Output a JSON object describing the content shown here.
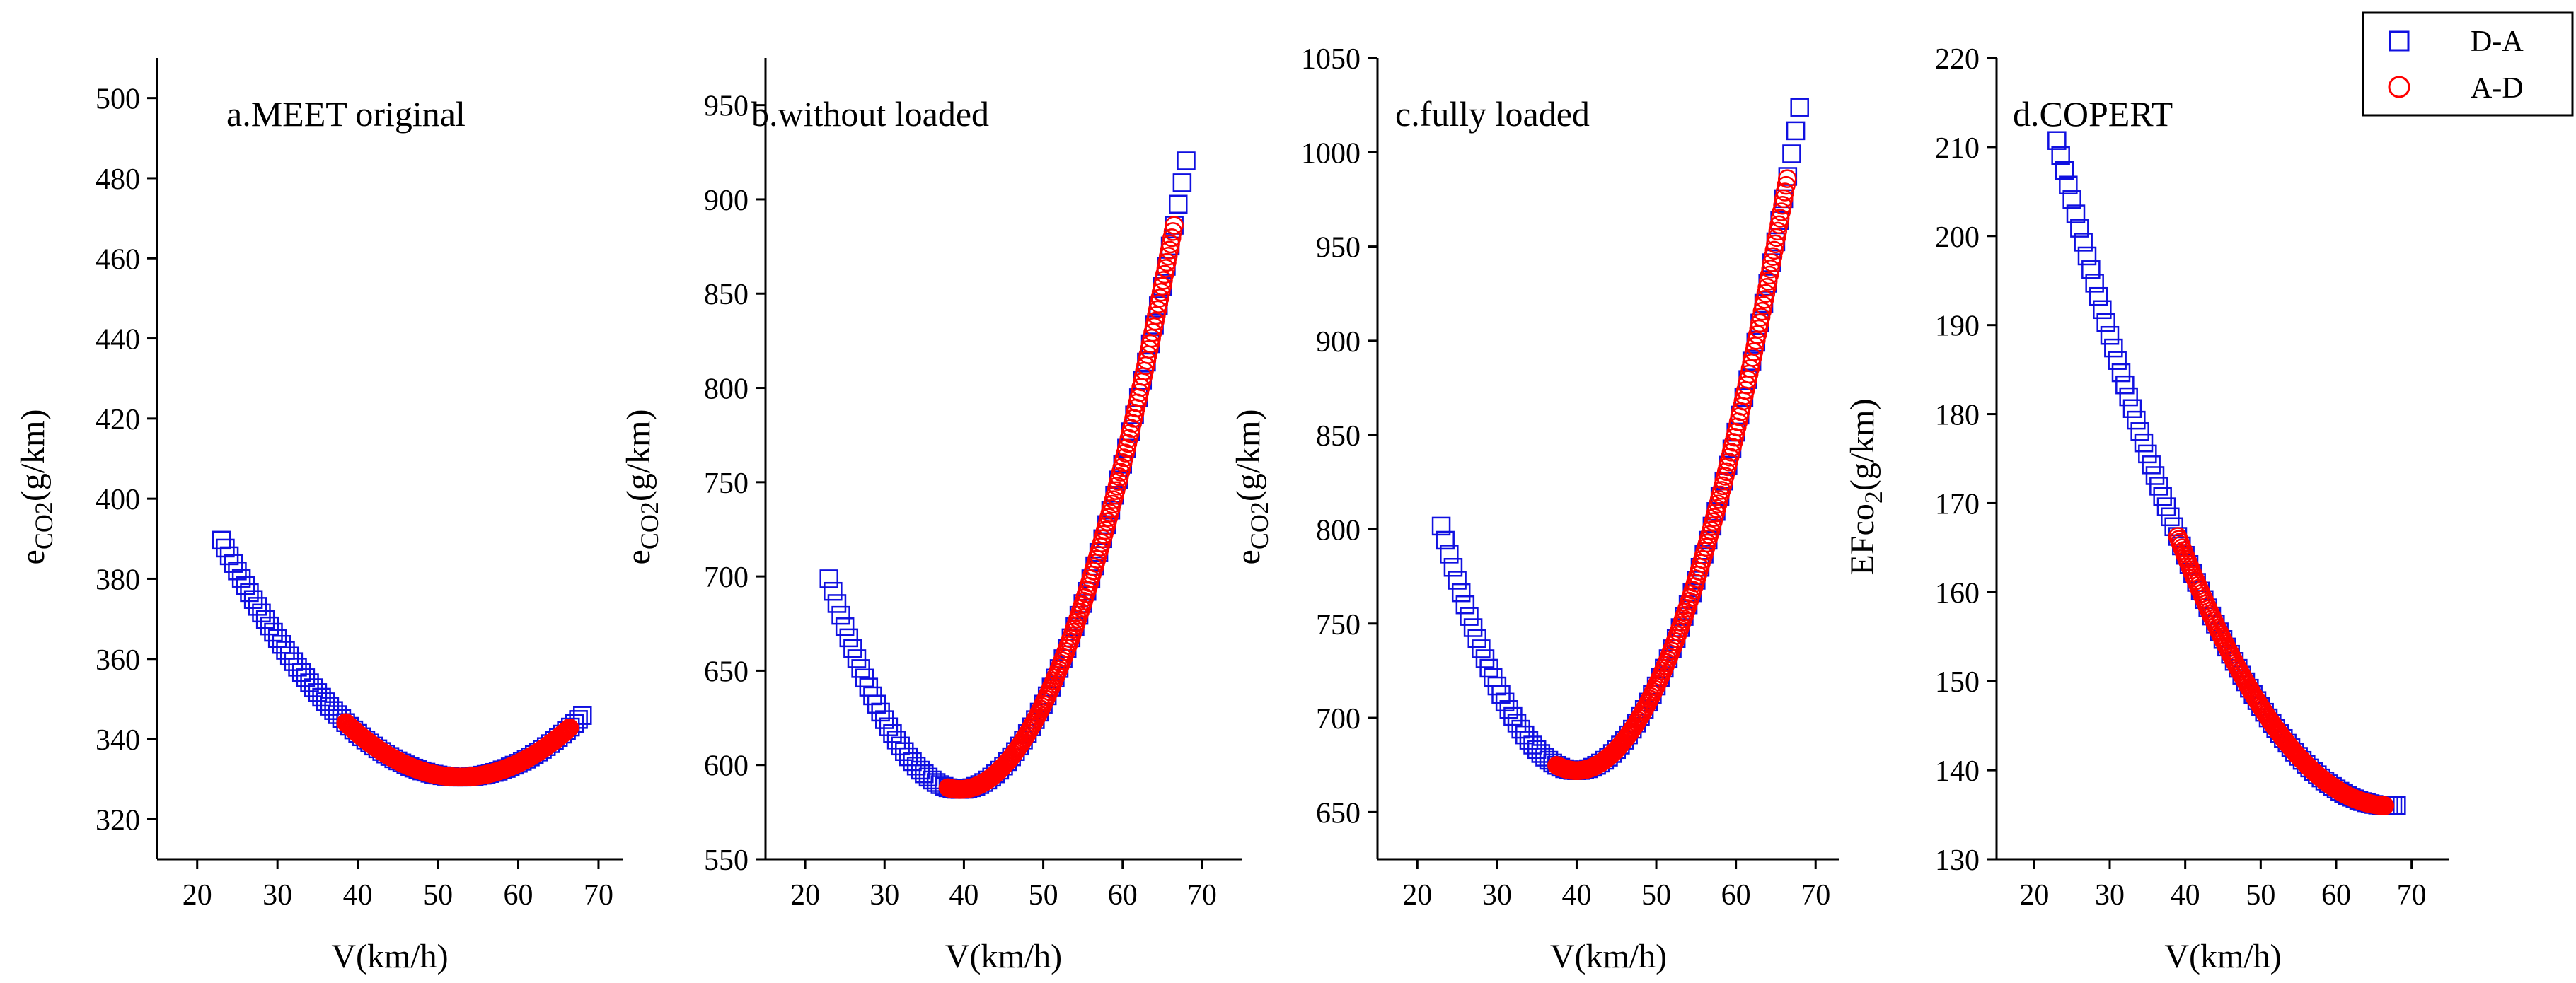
{
  "legend": {
    "entries": [
      {
        "label": "D-A",
        "marker": "square",
        "color": "#1010e0"
      },
      {
        "label": "A-D",
        "marker": "circle",
        "color": "#ff0000"
      }
    ],
    "placement": "top-right"
  },
  "colors": {
    "series_DA": "#1010e0",
    "series_AD": "#ff0000",
    "axis": "#000000"
  },
  "chart_data": [
    {
      "type": "scatter",
      "title": "a.MEET original",
      "xlabel": "V(km/h)",
      "ylabel": {
        "base": "e",
        "sub": "CO2",
        "rest": "(g/km)"
      },
      "xlim": [
        15,
        73
      ],
      "ylim": [
        310,
        510
      ],
      "xticks": [
        20,
        30,
        40,
        50,
        60,
        70
      ],
      "yticks": [
        320,
        340,
        360,
        380,
        400,
        420,
        440,
        460,
        480,
        500
      ],
      "series": [
        {
          "name": "D-A",
          "model": {
            "type": "quad",
            "a": 0.0666,
            "vmin": 52.8,
            "ymin": 330.5
          },
          "x_range": [
            23,
            68
          ]
        },
        {
          "name": "A-D",
          "model": {
            "type": "quad",
            "a": 0.0666,
            "vmin": 52.8,
            "ymin": 330.5
          },
          "x_range": [
            38.5,
            66.5
          ]
        }
      ]
    },
    {
      "type": "scatter",
      "title": "b.without loaded",
      "xlabel": "V(km/h)",
      "ylabel": {
        "base": "e",
        "sub": "CO2",
        "rest": "(g/km)"
      },
      "xlim": [
        15,
        75
      ],
      "ylim": [
        550,
        975
      ],
      "xticks": [
        20,
        30,
        40,
        50,
        60,
        70
      ],
      "yticks": [
        550,
        600,
        650,
        700,
        750,
        800,
        850,
        900,
        950
      ],
      "series": [
        {
          "name": "D-A",
          "model": {
            "type": "quad",
            "a": 0.4105,
            "vmin": 39.5,
            "ymin": 587
          },
          "x_range": [
            23,
            68
          ]
        },
        {
          "name": "A-D",
          "model": {
            "type": "quad",
            "a": 0.4105,
            "vmin": 39.5,
            "ymin": 587
          },
          "x_range": [
            38,
            66.5
          ]
        }
      ]
    },
    {
      "type": "scatter",
      "title": "c.fully loaded",
      "xlabel": "V(km/h)",
      "ylabel": {
        "base": "e",
        "sub": "CO2",
        "rest": "(g/km)"
      },
      "xlim": [
        15,
        73
      ],
      "ylim": [
        625,
        1050
      ],
      "xticks": [
        20,
        30,
        40,
        50,
        60,
        70
      ],
      "yticks": [
        650,
        700,
        750,
        800,
        850,
        900,
        950,
        1000,
        1050
      ],
      "series": [
        {
          "name": "D-A",
          "model": {
            "type": "quad",
            "a": 0.4488,
            "vmin": 40,
            "ymin": 672
          },
          "x_range": [
            23,
            68
          ]
        },
        {
          "name": "A-D",
          "model": {
            "type": "quad",
            "a": 0.4488,
            "vmin": 40,
            "ymin": 672
          },
          "x_range": [
            37.5,
            66.5
          ]
        }
      ]
    },
    {
      "type": "scatter",
      "title": "d.COPERT",
      "xlabel": "V(km/h)",
      "ylabel": {
        "base": "EFco",
        "sub": "2",
        "rest": "(g/km)"
      },
      "xlim": [
        15,
        75
      ],
      "ylim": [
        130,
        220
      ],
      "xticks": [
        20,
        30,
        40,
        50,
        60,
        70
      ],
      "yticks": [
        130,
        140,
        150,
        160,
        170,
        180,
        190,
        200,
        210,
        220
      ],
      "series": [
        {
          "name": "D-A",
          "model": {
            "type": "quad",
            "a": 0.0386,
            "vmin": 67,
            "ymin": 136
          },
          "x_range": [
            23,
            68
          ]
        },
        {
          "name": "A-D",
          "model": {
            "type": "quad",
            "a": 0.0386,
            "vmin": 67,
            "ymin": 136
          },
          "x_range": [
            39,
            66.5
          ]
        }
      ]
    }
  ]
}
